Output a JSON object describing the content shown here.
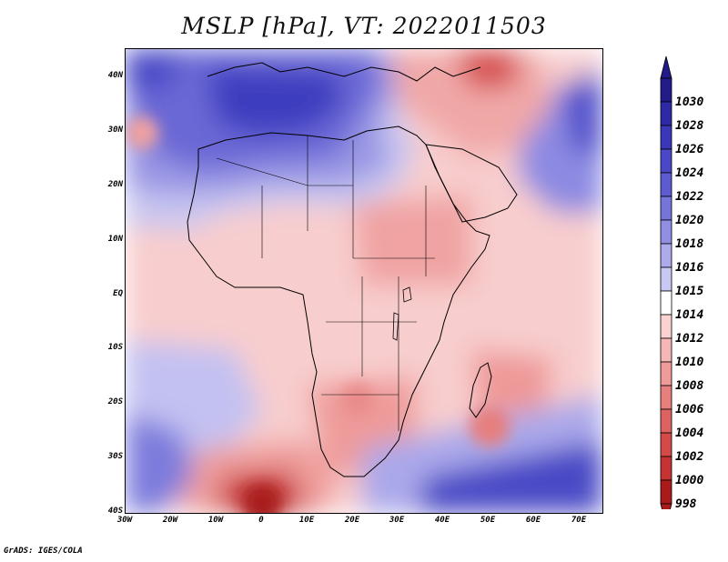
{
  "title": "MSLP [hPa], VT: 2022011503",
  "map": {
    "lat_ticks": [
      "40N",
      "30N",
      "20N",
      "10N",
      "EQ",
      "10S",
      "20S",
      "30S",
      "40S"
    ],
    "lon_ticks": [
      "30W",
      "20W",
      "10W",
      "0",
      "10E",
      "20E",
      "30E",
      "40E",
      "50E",
      "60E",
      "70E"
    ],
    "lon_range": [
      -30,
      75
    ],
    "lat_range": [
      -40,
      45
    ]
  },
  "colorbar": {
    "levels": [
      "1030",
      "1028",
      "1026",
      "1024",
      "1022",
      "1020",
      "1018",
      "1016",
      "1015",
      "1014",
      "1012",
      "1010",
      "1008",
      "1006",
      "1004",
      "1002",
      "1000",
      "998"
    ],
    "colors": [
      "#231b8a",
      "#2e2aa6",
      "#3a38b8",
      "#4a48c6",
      "#5d5bd0",
      "#7674da",
      "#918fe3",
      "#adabeb",
      "#c9c8f3",
      "#ffffff",
      "#fad2d2",
      "#f5b7b6",
      "#ee9b9a",
      "#e67f7e",
      "#dd6362",
      "#d34a49",
      "#c53333",
      "#a91a1a"
    ]
  },
  "footer": {
    "credit": "GrADS: IGES/COLA"
  }
}
